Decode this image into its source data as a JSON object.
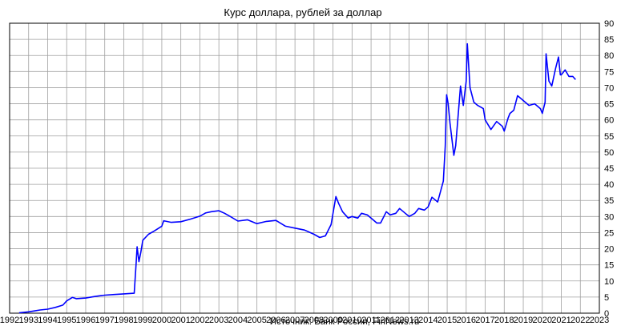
{
  "chart_data": {
    "type": "line",
    "title": "Курс доллара, рублей за доллар",
    "source_note": "Источник: Банк России, FinNews.ru",
    "xlabel": "",
    "ylabel": "",
    "x_ticks": [
      "1992",
      "1993",
      "1994",
      "1995",
      "1996",
      "1997",
      "1998",
      "1999",
      "2000",
      "2001",
      "2002",
      "2003",
      "2004",
      "2005",
      "2006",
      "2007",
      "2008",
      "2009",
      "2010",
      "2011",
      "2012",
      "2013",
      "2014",
      "2015",
      "2016",
      "2017",
      "2018",
      "2019",
      "2020",
      "2021",
      "2022",
      "2023"
    ],
    "y_ticks": [
      "0",
      "5",
      "10",
      "15",
      "20",
      "25",
      "30",
      "35",
      "40",
      "45",
      "50",
      "55",
      "60",
      "65",
      "70",
      "75",
      "80",
      "85",
      "90"
    ],
    "xlim": [
      1992,
      2023
    ],
    "ylim": [
      0,
      90
    ],
    "y_axis_side": "right",
    "grid": true,
    "series": [
      {
        "color": "#0000ff",
        "points": [
          [
            1992.5,
            0.13
          ],
          [
            1992.8,
            0.3
          ],
          [
            1993.0,
            0.42
          ],
          [
            1993.3,
            0.7
          ],
          [
            1993.6,
            0.99
          ],
          [
            1994.0,
            1.25
          ],
          [
            1994.4,
            1.8
          ],
          [
            1994.8,
            2.5
          ],
          [
            1995.0,
            3.8
          ],
          [
            1995.3,
            4.9
          ],
          [
            1995.5,
            4.5
          ],
          [
            1996.0,
            4.7
          ],
          [
            1996.5,
            5.2
          ],
          [
            1997.0,
            5.6
          ],
          [
            1997.5,
            5.8
          ],
          [
            1998.0,
            6.0
          ],
          [
            1998.55,
            6.2
          ],
          [
            1998.65,
            15.5
          ],
          [
            1998.7,
            20.6
          ],
          [
            1998.8,
            16.0
          ],
          [
            1998.9,
            19.0
          ],
          [
            1999.0,
            22.6
          ],
          [
            1999.3,
            24.5
          ],
          [
            1999.6,
            25.5
          ],
          [
            2000.0,
            27.0
          ],
          [
            2000.1,
            28.7
          ],
          [
            2000.5,
            28.2
          ],
          [
            2001.0,
            28.4
          ],
          [
            2001.5,
            29.2
          ],
          [
            2002.0,
            30.1
          ],
          [
            2002.3,
            31.1
          ],
          [
            2002.6,
            31.5
          ],
          [
            2003.0,
            31.8
          ],
          [
            2003.3,
            31.0
          ],
          [
            2003.6,
            30.0
          ],
          [
            2004.0,
            28.6
          ],
          [
            2004.5,
            29.0
          ],
          [
            2005.0,
            27.8
          ],
          [
            2005.5,
            28.5
          ],
          [
            2006.0,
            28.8
          ],
          [
            2006.5,
            27.0
          ],
          [
            2007.0,
            26.4
          ],
          [
            2007.5,
            25.8
          ],
          [
            2008.0,
            24.5
          ],
          [
            2008.3,
            23.5
          ],
          [
            2008.6,
            24.0
          ],
          [
            2008.9,
            27.5
          ],
          [
            2009.0,
            31.0
          ],
          [
            2009.15,
            36.2
          ],
          [
            2009.3,
            34.0
          ],
          [
            2009.5,
            31.5
          ],
          [
            2009.8,
            29.5
          ],
          [
            2010.0,
            30.0
          ],
          [
            2010.3,
            29.5
          ],
          [
            2010.5,
            31.0
          ],
          [
            2010.8,
            30.5
          ],
          [
            2011.0,
            29.5
          ],
          [
            2011.3,
            28.0
          ],
          [
            2011.5,
            28.0
          ],
          [
            2011.8,
            31.5
          ],
          [
            2012.0,
            30.5
          ],
          [
            2012.3,
            31.0
          ],
          [
            2012.5,
            32.5
          ],
          [
            2012.8,
            31.0
          ],
          [
            2013.0,
            30.0
          ],
          [
            2013.3,
            31.0
          ],
          [
            2013.5,
            32.5
          ],
          [
            2013.8,
            32.0
          ],
          [
            2014.0,
            33.0
          ],
          [
            2014.2,
            36.0
          ],
          [
            2014.5,
            34.5
          ],
          [
            2014.8,
            41.0
          ],
          [
            2014.9,
            52.0
          ],
          [
            2014.97,
            67.8
          ],
          [
            2015.05,
            65.0
          ],
          [
            2015.15,
            59.0
          ],
          [
            2015.35,
            49.0
          ],
          [
            2015.45,
            52.0
          ],
          [
            2015.6,
            63.0
          ],
          [
            2015.7,
            70.5
          ],
          [
            2015.85,
            64.5
          ],
          [
            2016.0,
            72.0
          ],
          [
            2016.06,
            83.6
          ],
          [
            2016.2,
            70.0
          ],
          [
            2016.4,
            65.5
          ],
          [
            2016.6,
            64.5
          ],
          [
            2016.9,
            63.5
          ],
          [
            2017.0,
            60.0
          ],
          [
            2017.3,
            57.0
          ],
          [
            2017.6,
            59.5
          ],
          [
            2017.9,
            58.0
          ],
          [
            2018.0,
            56.5
          ],
          [
            2018.2,
            60.5
          ],
          [
            2018.3,
            62.0
          ],
          [
            2018.5,
            63.0
          ],
          [
            2018.7,
            67.5
          ],
          [
            2018.9,
            66.5
          ],
          [
            2019.0,
            66.0
          ],
          [
            2019.3,
            64.5
          ],
          [
            2019.6,
            65.0
          ],
          [
            2019.9,
            63.5
          ],
          [
            2020.0,
            62.0
          ],
          [
            2020.15,
            65.5
          ],
          [
            2020.2,
            80.5
          ],
          [
            2020.35,
            72.0
          ],
          [
            2020.5,
            70.5
          ],
          [
            2020.7,
            76.0
          ],
          [
            2020.85,
            79.5
          ],
          [
            2020.95,
            74.0
          ],
          [
            2021.0,
            74.0
          ],
          [
            2021.2,
            75.5
          ],
          [
            2021.4,
            73.5
          ],
          [
            2021.6,
            73.5
          ],
          [
            2021.75,
            72.5
          ]
        ]
      }
    ]
  }
}
